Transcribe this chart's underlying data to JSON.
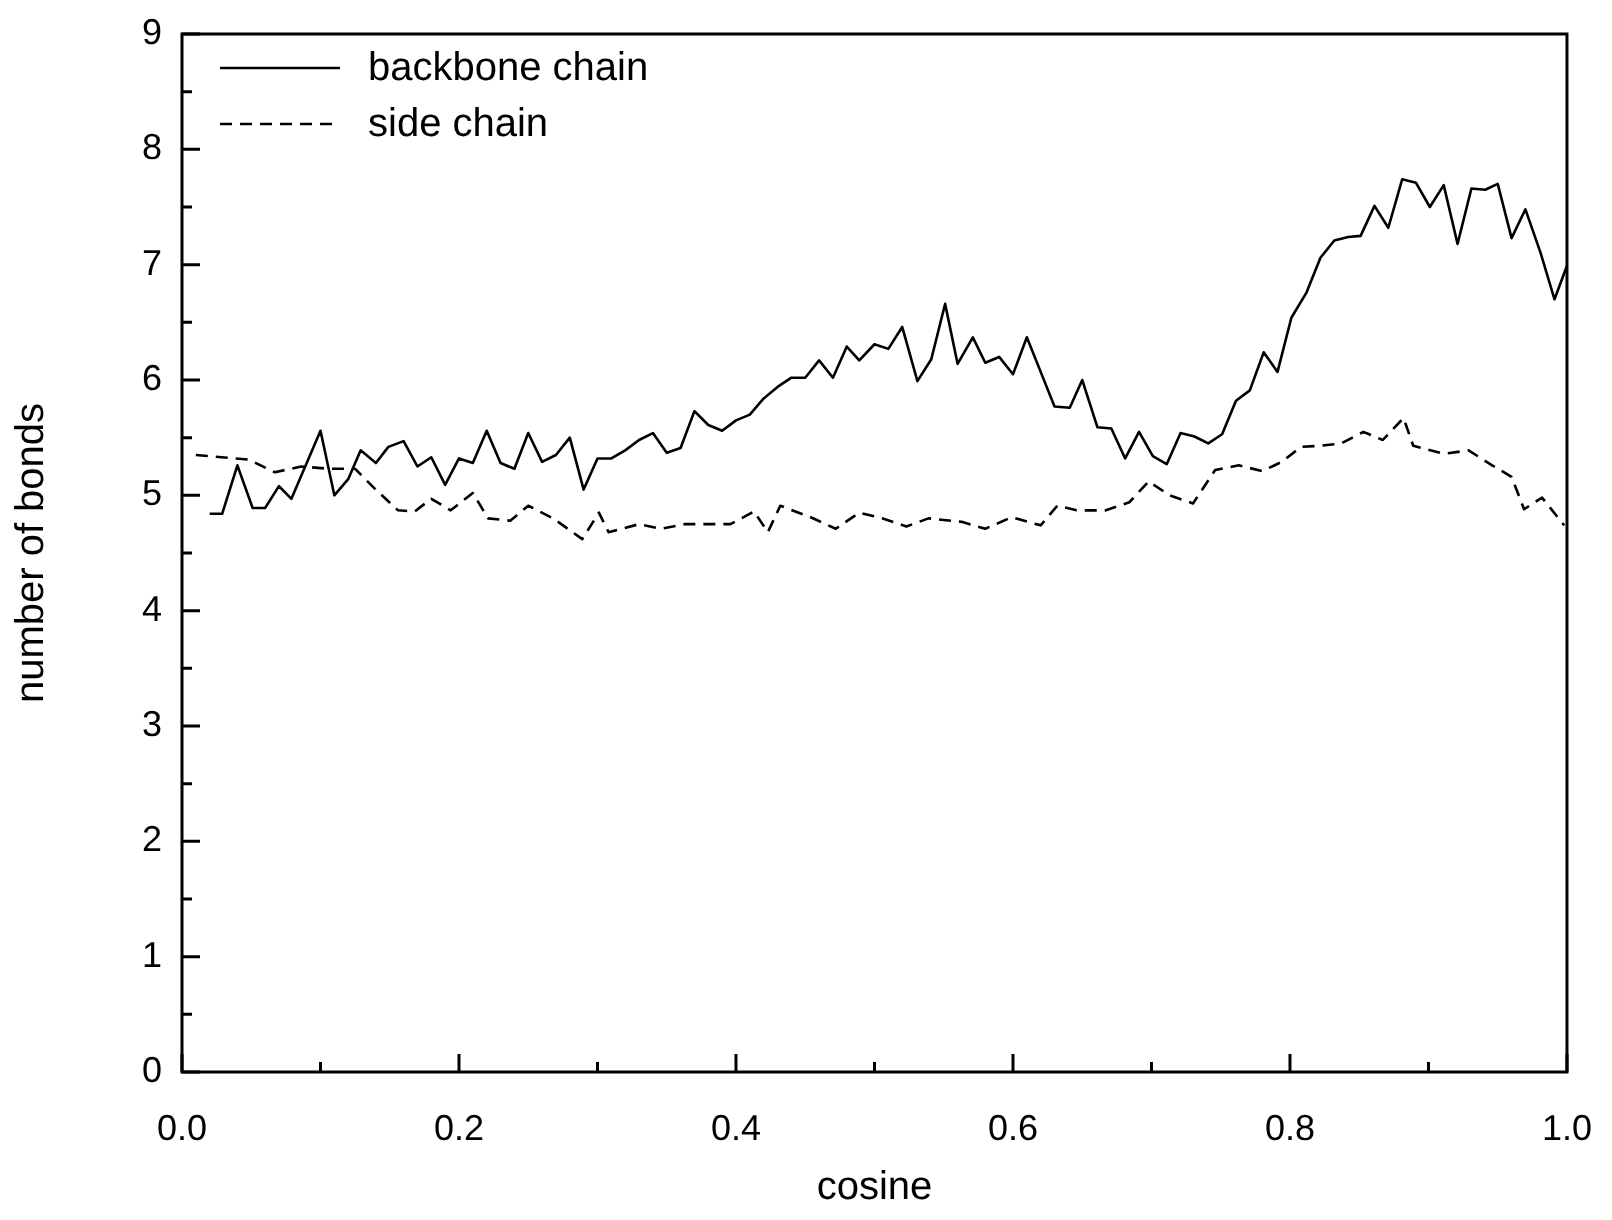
{
  "chart_data": {
    "type": "line",
    "xlabel": "cosine",
    "ylabel": "number of bonds",
    "xlim": [
      0,
      1
    ],
    "ylim": [
      0,
      9
    ],
    "xticks": [
      {
        "value": 0,
        "label": "0.0"
      },
      {
        "value": 0.1,
        "label": null
      },
      {
        "value": 0.2,
        "label": "0.2"
      },
      {
        "value": 0.3,
        "label": null
      },
      {
        "value": 0.4,
        "label": "0.4"
      },
      {
        "value": 0.5,
        "label": null
      },
      {
        "value": 0.6,
        "label": "0.6"
      },
      {
        "value": 0.7,
        "label": null
      },
      {
        "value": 0.8,
        "label": "0.8"
      },
      {
        "value": 0.9,
        "label": null
      },
      {
        "value": 1,
        "label": "1.0"
      }
    ],
    "yticks": [
      0,
      {
        "value": 0.5,
        "label": null
      },
      1,
      {
        "value": 1.5,
        "label": null
      },
      2,
      {
        "value": 2.5,
        "label": null
      },
      3,
      {
        "value": 3.5,
        "label": null
      },
      4,
      {
        "value": 4.5,
        "label": null
      },
      5,
      {
        "value": 5.5,
        "label": null
      },
      6,
      {
        "value": 6.5,
        "label": null
      },
      7,
      {
        "value": 7.5,
        "label": null
      },
      8,
      {
        "value": 8.5,
        "label": null
      },
      9
    ],
    "legend": "top left",
    "grid": false,
    "marker": "none",
    "series": [
      {
        "name": "backbone chain",
        "color": "#000000",
        "line_style": "solid",
        "x": [
          0.02,
          0.029,
          0.04,
          0.051,
          0.06,
          0.07,
          0.079,
          0.1,
          0.11,
          0.12,
          0.129,
          0.14,
          0.149,
          0.16,
          0.17,
          0.18,
          0.19,
          0.2,
          0.21,
          0.22,
          0.23,
          0.24,
          0.25,
          0.26,
          0.27,
          0.28,
          0.29,
          0.3,
          0.31,
          0.32,
          0.33,
          0.34,
          0.35,
          0.36,
          0.37,
          0.38,
          0.39,
          0.4,
          0.41,
          0.42,
          0.43,
          0.44,
          0.45,
          0.46,
          0.47,
          0.48,
          0.489,
          0.5,
          0.51,
          0.52,
          0.531,
          0.541,
          0.551,
          0.56,
          0.571,
          0.58,
          0.59,
          0.6,
          0.61,
          0.621,
          0.63,
          0.641,
          0.65,
          0.661,
          0.671,
          0.681,
          0.691,
          0.701,
          0.711,
          0.721,
          0.731,
          0.741,
          0.751,
          0.761,
          0.771,
          0.781,
          0.791,
          0.801,
          0.812,
          0.822,
          0.832,
          0.842,
          0.851,
          0.861,
          0.871,
          0.881,
          0.891,
          0.901,
          0.911,
          0.921,
          0.931,
          0.941,
          0.95,
          0.96,
          0.97,
          0.981,
          0.991,
          1.0
        ],
        "values": [
          4.84,
          4.84,
          5.26,
          4.89,
          4.89,
          5.08,
          4.97,
          5.56,
          5.0,
          5.14,
          5.39,
          5.28,
          5.42,
          5.47,
          5.25,
          5.33,
          5.09,
          5.32,
          5.28,
          5.56,
          5.28,
          5.23,
          5.54,
          5.29,
          5.35,
          5.5,
          5.05,
          5.32,
          5.32,
          5.39,
          5.48,
          5.54,
          5.37,
          5.41,
          5.73,
          5.61,
          5.56,
          5.65,
          5.7,
          5.84,
          5.94,
          6.02,
          6.02,
          6.17,
          6.02,
          6.29,
          6.17,
          6.31,
          6.27,
          6.46,
          5.99,
          6.18,
          6.66,
          6.14,
          6.37,
          6.15,
          6.2,
          6.05,
          6.37,
          6.04,
          5.77,
          5.76,
          6.0,
          5.59,
          5.58,
          5.32,
          5.55,
          5.34,
          5.27,
          5.54,
          5.51,
          5.45,
          5.53,
          5.82,
          5.91,
          6.24,
          6.07,
          6.54,
          6.76,
          7.06,
          7.21,
          7.24,
          7.25,
          7.51,
          7.32,
          7.74,
          7.71,
          7.5,
          7.69,
          7.18,
          7.66,
          7.65,
          7.7,
          7.23,
          7.48,
          7.1,
          6.7,
          6.99
        ]
      },
      {
        "name": "side chain",
        "color": "#000000",
        "line_style": "dashed",
        "x": [
          0.01,
          0.048,
          0.067,
          0.086,
          0.106,
          0.125,
          0.139,
          0.156,
          0.168,
          0.18,
          0.194,
          0.21,
          0.221,
          0.237,
          0.25,
          0.268,
          0.289,
          0.301,
          0.308,
          0.33,
          0.346,
          0.363,
          0.396,
          0.413,
          0.423,
          0.432,
          0.454,
          0.472,
          0.489,
          0.506,
          0.523,
          0.539,
          0.563,
          0.58,
          0.599,
          0.62,
          0.632,
          0.646,
          0.667,
          0.684,
          0.698,
          0.713,
          0.73,
          0.746,
          0.763,
          0.78,
          0.794,
          0.808,
          0.822,
          0.837,
          0.853,
          0.867,
          0.882,
          0.889,
          0.911,
          0.929,
          0.946,
          0.96,
          0.969,
          0.982,
          0.998
        ],
        "values": [
          5.35,
          5.31,
          5.2,
          5.25,
          5.23,
          5.23,
          5.06,
          4.87,
          4.86,
          4.97,
          4.87,
          5.02,
          4.8,
          4.78,
          4.91,
          4.8,
          4.62,
          4.85,
          4.68,
          4.75,
          4.71,
          4.75,
          4.75,
          4.86,
          4.68,
          4.91,
          4.81,
          4.71,
          4.85,
          4.8,
          4.73,
          4.8,
          4.77,
          4.71,
          4.81,
          4.74,
          4.91,
          4.87,
          4.87,
          4.94,
          5.12,
          5.0,
          4.93,
          5.22,
          5.26,
          5.21,
          5.29,
          5.42,
          5.43,
          5.45,
          5.55,
          5.48,
          5.67,
          5.43,
          5.36,
          5.39,
          5.26,
          5.16,
          4.88,
          4.98,
          4.74
        ]
      }
    ]
  }
}
